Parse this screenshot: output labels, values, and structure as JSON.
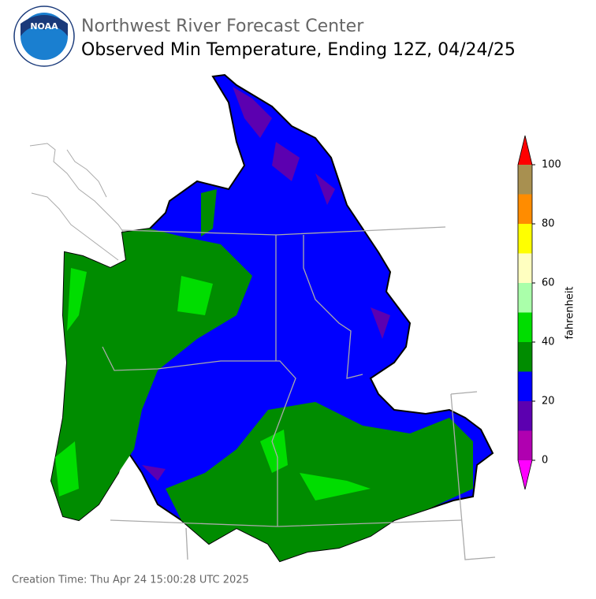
{
  "header": {
    "logo_text": "NOAA",
    "agency": "Northwest River Forecast Center",
    "title": "Observed Min Temperature, Ending 12Z, 04/24/25"
  },
  "colorbar": {
    "label": "fahrenheit",
    "ticks": [
      0,
      20,
      40,
      60,
      80,
      100
    ],
    "levels": [
      0,
      10,
      20,
      30,
      40,
      50,
      60,
      70,
      80,
      90,
      100
    ],
    "colors": [
      "#b000b0",
      "#5c00b0",
      "#0000ff",
      "#008c00",
      "#00dd00",
      "#aaffaa",
      "#ffffc0",
      "#ffff00",
      "#ff8c00",
      "#a89050"
    ],
    "under_color": "#ff00ff",
    "over_color": "#ff0000"
  },
  "footer": {
    "creation_time": "Creation Time: Thu Apr 24 15:00:28 UTC 2025"
  }
}
